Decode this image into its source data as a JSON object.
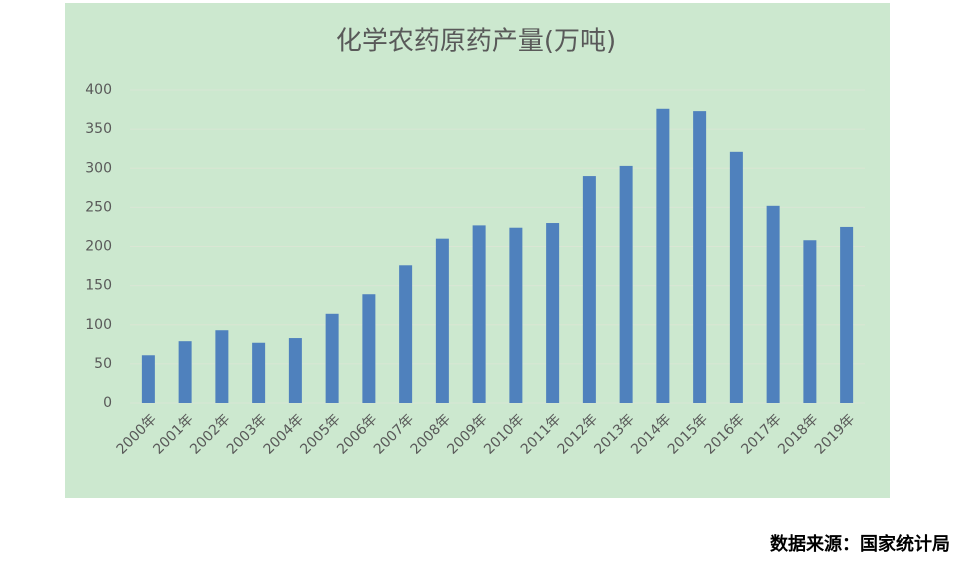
{
  "chart_data": {
    "type": "bar",
    "title": "化学农药原药产量(万吨)",
    "categories": [
      "2000年",
      "2001年",
      "2002年",
      "2003年",
      "2004年",
      "2005年",
      "2006年",
      "2007年",
      "2008年",
      "2009年",
      "2010年",
      "2011年",
      "2012年",
      "2013年",
      "2014年",
      "2015年",
      "2016年",
      "2017年",
      "2018年",
      "2019年"
    ],
    "values": [
      61,
      79,
      93,
      77,
      83,
      114,
      139,
      176,
      210,
      227,
      224,
      230,
      290,
      303,
      376,
      373,
      321,
      252,
      208,
      225
    ],
    "color": "#4f81bd",
    "ylim": [
      0,
      400
    ],
    "yticks": [
      0,
      50,
      100,
      150,
      200,
      250,
      300,
      350,
      400
    ],
    "grid": true,
    "source": "数据来源：国家统计局"
  }
}
